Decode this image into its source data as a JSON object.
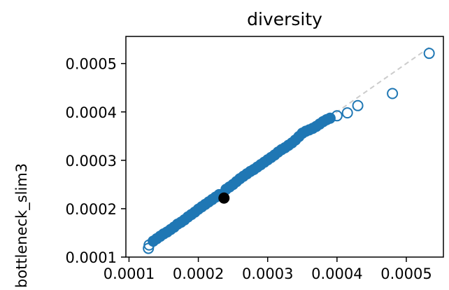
{
  "chart_data": {
    "type": "scatter",
    "title": "diversity",
    "xlabel": "",
    "ylabel": "bottleneck_slim3",
    "xlim": [
      9.55e-05,
      0.0005535
    ],
    "ylim": [
      0.0001,
      0.000556
    ],
    "x_ticks": [
      {
        "value": 0.0001,
        "label": "0.0001"
      },
      {
        "value": 0.0002,
        "label": "0.0002"
      },
      {
        "value": 0.0003,
        "label": "0.0003"
      },
      {
        "value": 0.0004,
        "label": "0.0004"
      },
      {
        "value": 0.0005,
        "label": "0.0005"
      }
    ],
    "y_ticks": [
      {
        "value": 0.0001,
        "label": "0.0001"
      },
      {
        "value": 0.0002,
        "label": "0.0002"
      },
      {
        "value": 0.0003,
        "label": "0.0003"
      },
      {
        "value": 0.0004,
        "label": "0.0004"
      },
      {
        "value": 0.0005,
        "label": "0.0005"
      }
    ],
    "grid": false,
    "reference_line": {
      "style": "dashed",
      "color": "#cccccc",
      "from": [
        0.00013,
        0.00013
      ],
      "to": [
        0.000535,
        0.000535
      ]
    },
    "series": [
      {
        "marker": "filled-circle",
        "color": "#1f77b4",
        "x": [
          0.000135,
          0.00014,
          0.000145,
          0.00015,
          0.000155,
          0.00016,
          0.000165,
          0.00017,
          0.000175,
          0.00018,
          0.000185,
          0.00019,
          0.000195,
          0.0002,
          0.000205,
          0.00021,
          0.000215,
          0.00022,
          0.000225,
          0.00023,
          0.00024,
          0.000245,
          0.00025,
          0.000255,
          0.00026,
          0.000265,
          0.00027,
          0.000275,
          0.00028,
          0.000285,
          0.00029,
          0.000295,
          0.0003,
          0.000305,
          0.00031,
          0.000315,
          0.00032,
          0.000325,
          0.00033,
          0.000335,
          0.00034,
          0.000345,
          0.00035,
          0.000355,
          0.00036,
          0.000365,
          0.00037,
          0.000375,
          0.00038,
          0.000385,
          0.00039
        ],
        "y": [
          0.000133,
          0.000138,
          0.000143,
          0.000148,
          0.000152,
          0.000157,
          0.000162,
          0.000168,
          0.000172,
          0.000177,
          0.000183,
          0.000188,
          0.000193,
          0.000199,
          0.000204,
          0.000209,
          0.000214,
          0.000219,
          0.000224,
          0.000229,
          0.00024,
          0.000245,
          0.00025,
          0.000256,
          0.000262,
          0.000267,
          0.000272,
          0.000277,
          0.000281,
          0.000286,
          0.000291,
          0.000296,
          0.000301,
          0.000306,
          0.000311,
          0.000317,
          0.000322,
          0.000326,
          0.000331,
          0.000336,
          0.000342,
          0.000349,
          0.000356,
          0.00036,
          0.000363,
          0.000366,
          0.00037,
          0.000375,
          0.00038,
          0.000384,
          0.000387
        ]
      },
      {
        "marker": "open-circle",
        "color": "#1f77b4",
        "x": [
          0.000128,
          0.000129,
          0.0004,
          0.000415,
          0.00043,
          0.00048,
          0.000533
        ],
        "y": [
          0.000118,
          0.000125,
          0.000392,
          0.000398,
          0.000413,
          0.000438,
          0.000521
        ]
      },
      {
        "marker": "filled-circle",
        "color": "#000000",
        "x": [
          0.000237
        ],
        "y": [
          0.000222
        ]
      }
    ]
  }
}
